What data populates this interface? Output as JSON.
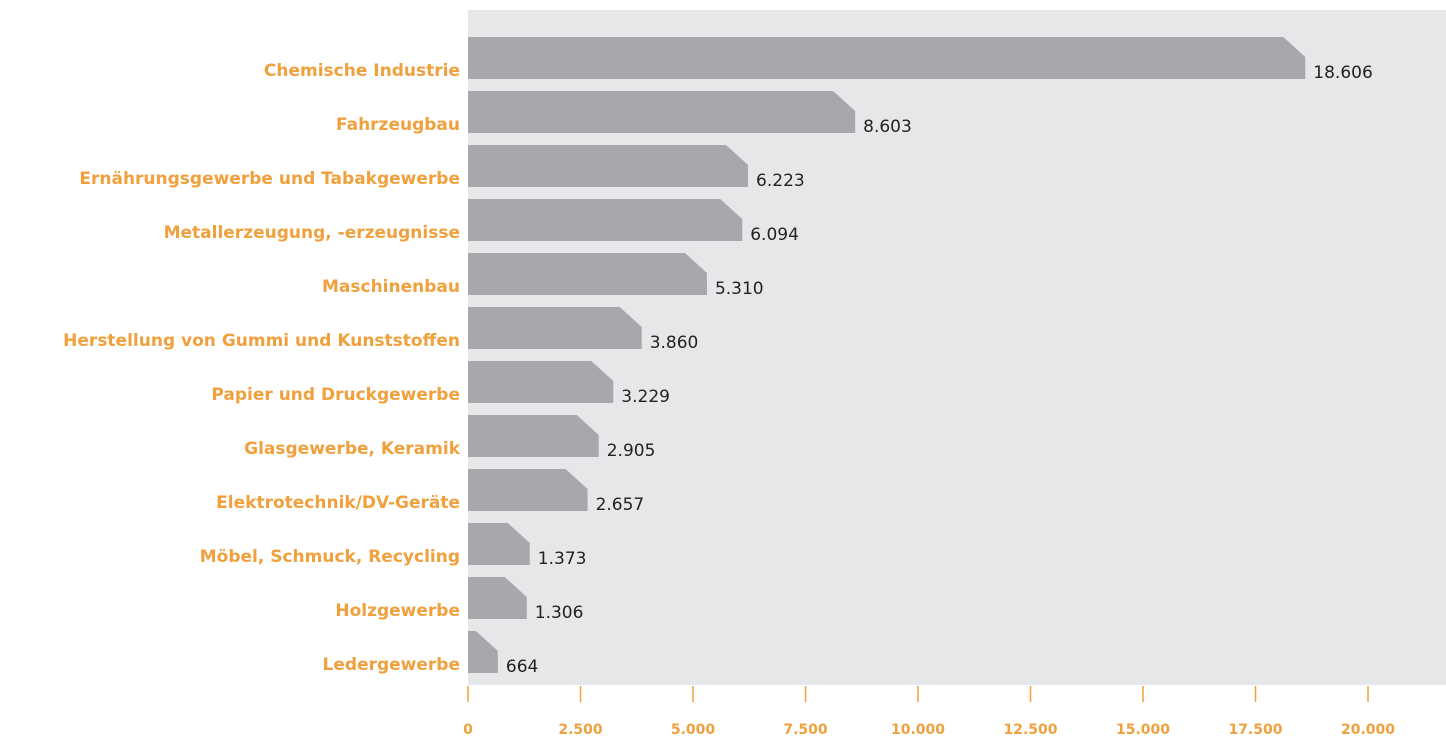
{
  "chart_data": {
    "type": "bar",
    "orientation": "horizontal",
    "categories": [
      "Chemische Industrie",
      "Fahrzeugbau",
      "Ernährungsgewerbe und Tabakgewerbe",
      "Metallerzeugung, -erzeugnisse",
      "Maschinenbau",
      "Herstellung von Gummi und Kunststoffen",
      "Papier und Druckgewerbe",
      "Glasgewerbe, Keramik",
      "Elektrotechnik/DV-Geräte",
      "Möbel, Schmuck, Recycling",
      "Holzgewerbe",
      "Ledergewerbe"
    ],
    "values": [
      18606,
      8603,
      6223,
      6094,
      5310,
      3860,
      3229,
      2905,
      2657,
      1373,
      1306,
      664
    ],
    "value_labels": [
      "18.606",
      "8.603",
      "6.223",
      "6.094",
      "5.310",
      "3.860",
      "3.229",
      "2.905",
      "2.657",
      "1.373",
      "1.306",
      "664"
    ],
    "color": "#a7a8ab",
    "xlim": [
      0,
      21733
    ],
    "xticks": [
      0,
      {
        "value": 2500,
        "label": "2.500"
      },
      {
        "value": 5000,
        "label": "5.000"
      },
      {
        "value": 7500,
        "label": "7.500"
      },
      {
        "value": 10000,
        "label": "10.000"
      },
      {
        "value": 12500,
        "label": "12.500"
      },
      {
        "value": 15000,
        "label": "15.000"
      },
      {
        "value": 17500,
        "label": "17.500"
      },
      {
        "value": 20000,
        "label": "20.000"
      }
    ]
  }
}
